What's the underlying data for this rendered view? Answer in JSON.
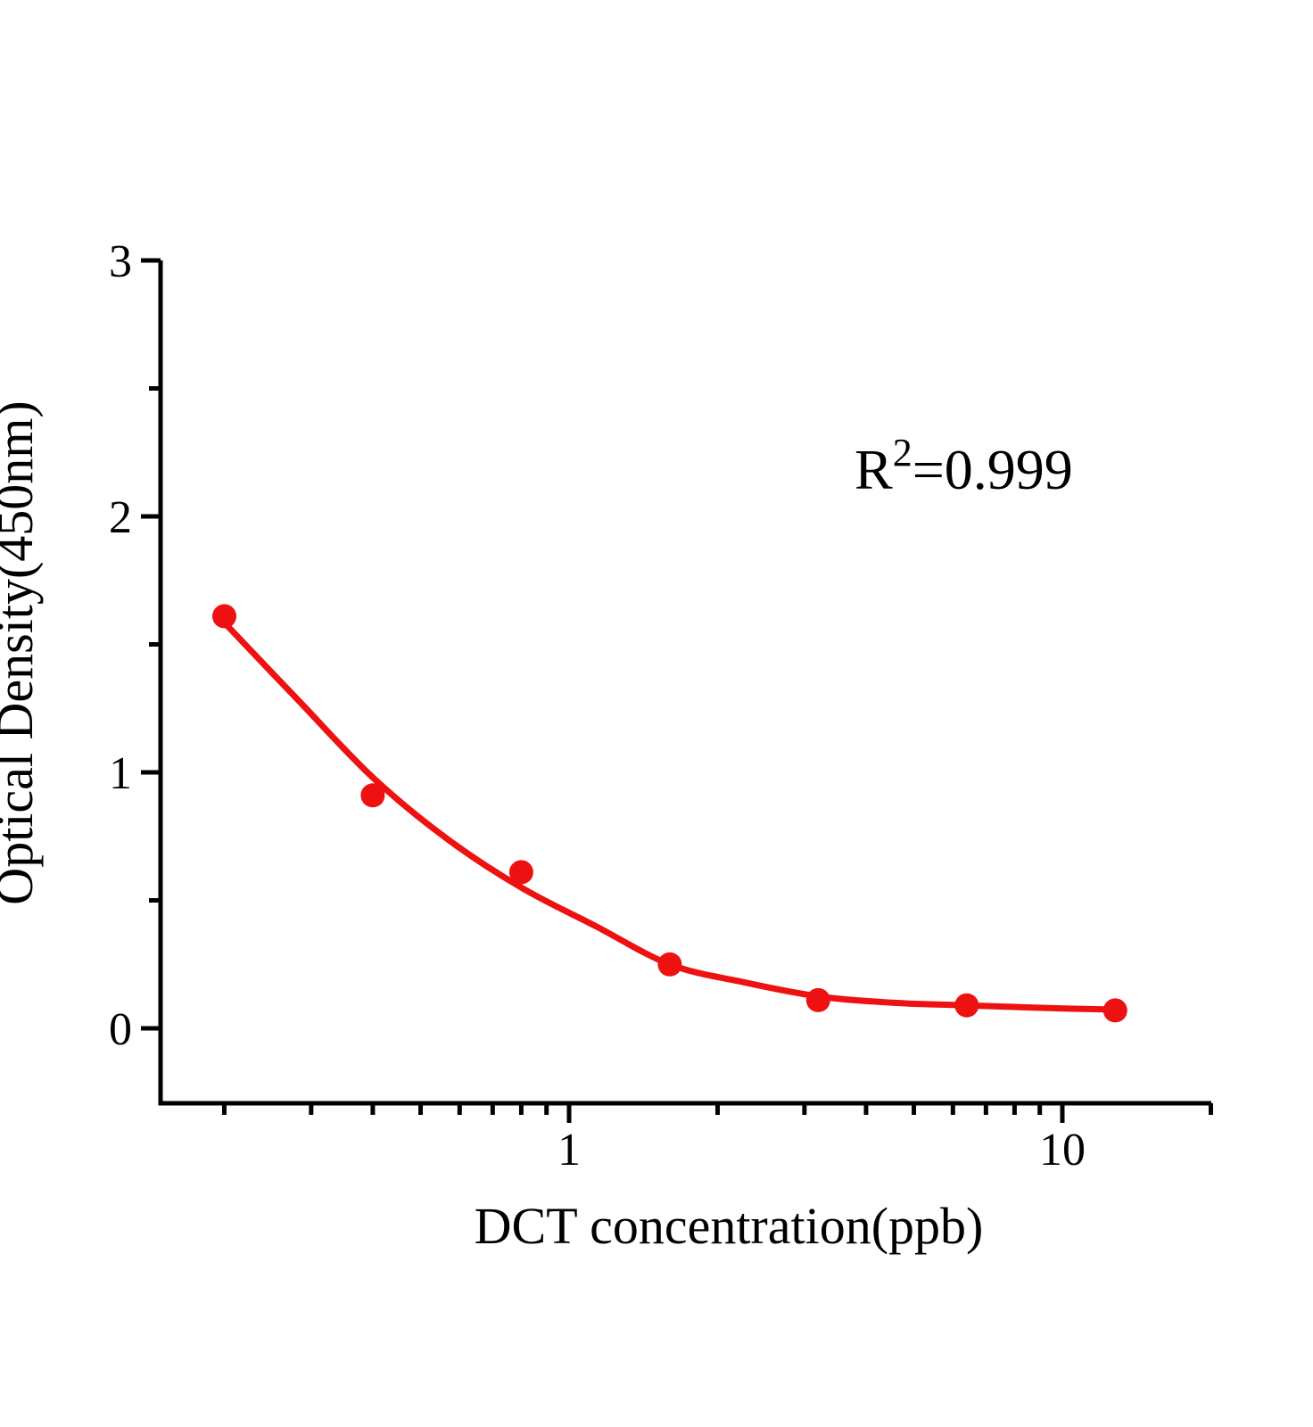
{
  "chart_data": {
    "type": "scatter",
    "title": "",
    "xlabel": "DCT concentration(ppb)",
    "ylabel": "Optical Density(450nm)",
    "x_scale": "log",
    "y_scale": "linear",
    "x_range": [
      0.15,
      20
    ],
    "y_range": [
      -0.3,
      3
    ],
    "grid": "off",
    "legend": "none",
    "annotation": "R²=0.999",
    "annotation_parts": {
      "base": "R",
      "sup": "2",
      "rest": "=0.999"
    },
    "series": [
      {
        "x": [
          0.2,
          0.4,
          0.8,
          1.6,
          3.2,
          6.4,
          12.8
        ],
        "y": [
          1.61,
          0.91,
          0.61,
          0.25,
          0.11,
          0.09,
          0.07
        ],
        "marker": "filled-circle",
        "color": "#ee1111"
      }
    ],
    "fit_curve": {
      "r_squared": 0.999,
      "color": "#ee1111",
      "points": [
        [
          0.2,
          1.585
        ],
        [
          0.283,
          1.28
        ],
        [
          0.4,
          0.98
        ],
        [
          0.566,
          0.74
        ],
        [
          0.8,
          0.55
        ],
        [
          1.13,
          0.4
        ],
        [
          1.6,
          0.25
        ],
        [
          2.26,
          0.18
        ],
        [
          3.2,
          0.125
        ],
        [
          4.53,
          0.1
        ],
        [
          6.4,
          0.09
        ],
        [
          9.05,
          0.08
        ],
        [
          12.8,
          0.073
        ]
      ]
    },
    "x_ticks_major": [
      {
        "value": 1,
        "label": "1"
      },
      {
        "value": 10,
        "label": "10"
      }
    ],
    "x_ticks_minor": [
      0.2,
      0.3,
      0.4,
      0.5,
      0.6,
      0.7,
      0.8,
      0.9,
      2,
      3,
      4,
      5,
      6,
      7,
      8,
      9,
      20
    ],
    "y_ticks_major": [
      {
        "value": 0,
        "label": "0"
      },
      {
        "value": 1,
        "label": "1"
      },
      {
        "value": 2,
        "label": "2"
      },
      {
        "value": 3,
        "label": "3"
      }
    ],
    "y_ticks_minor": [
      0.5,
      1.5,
      2.5
    ],
    "colors": {
      "series": "#ee1111",
      "axis": "#000000",
      "text": "#000000",
      "background": "#ffffff"
    }
  }
}
